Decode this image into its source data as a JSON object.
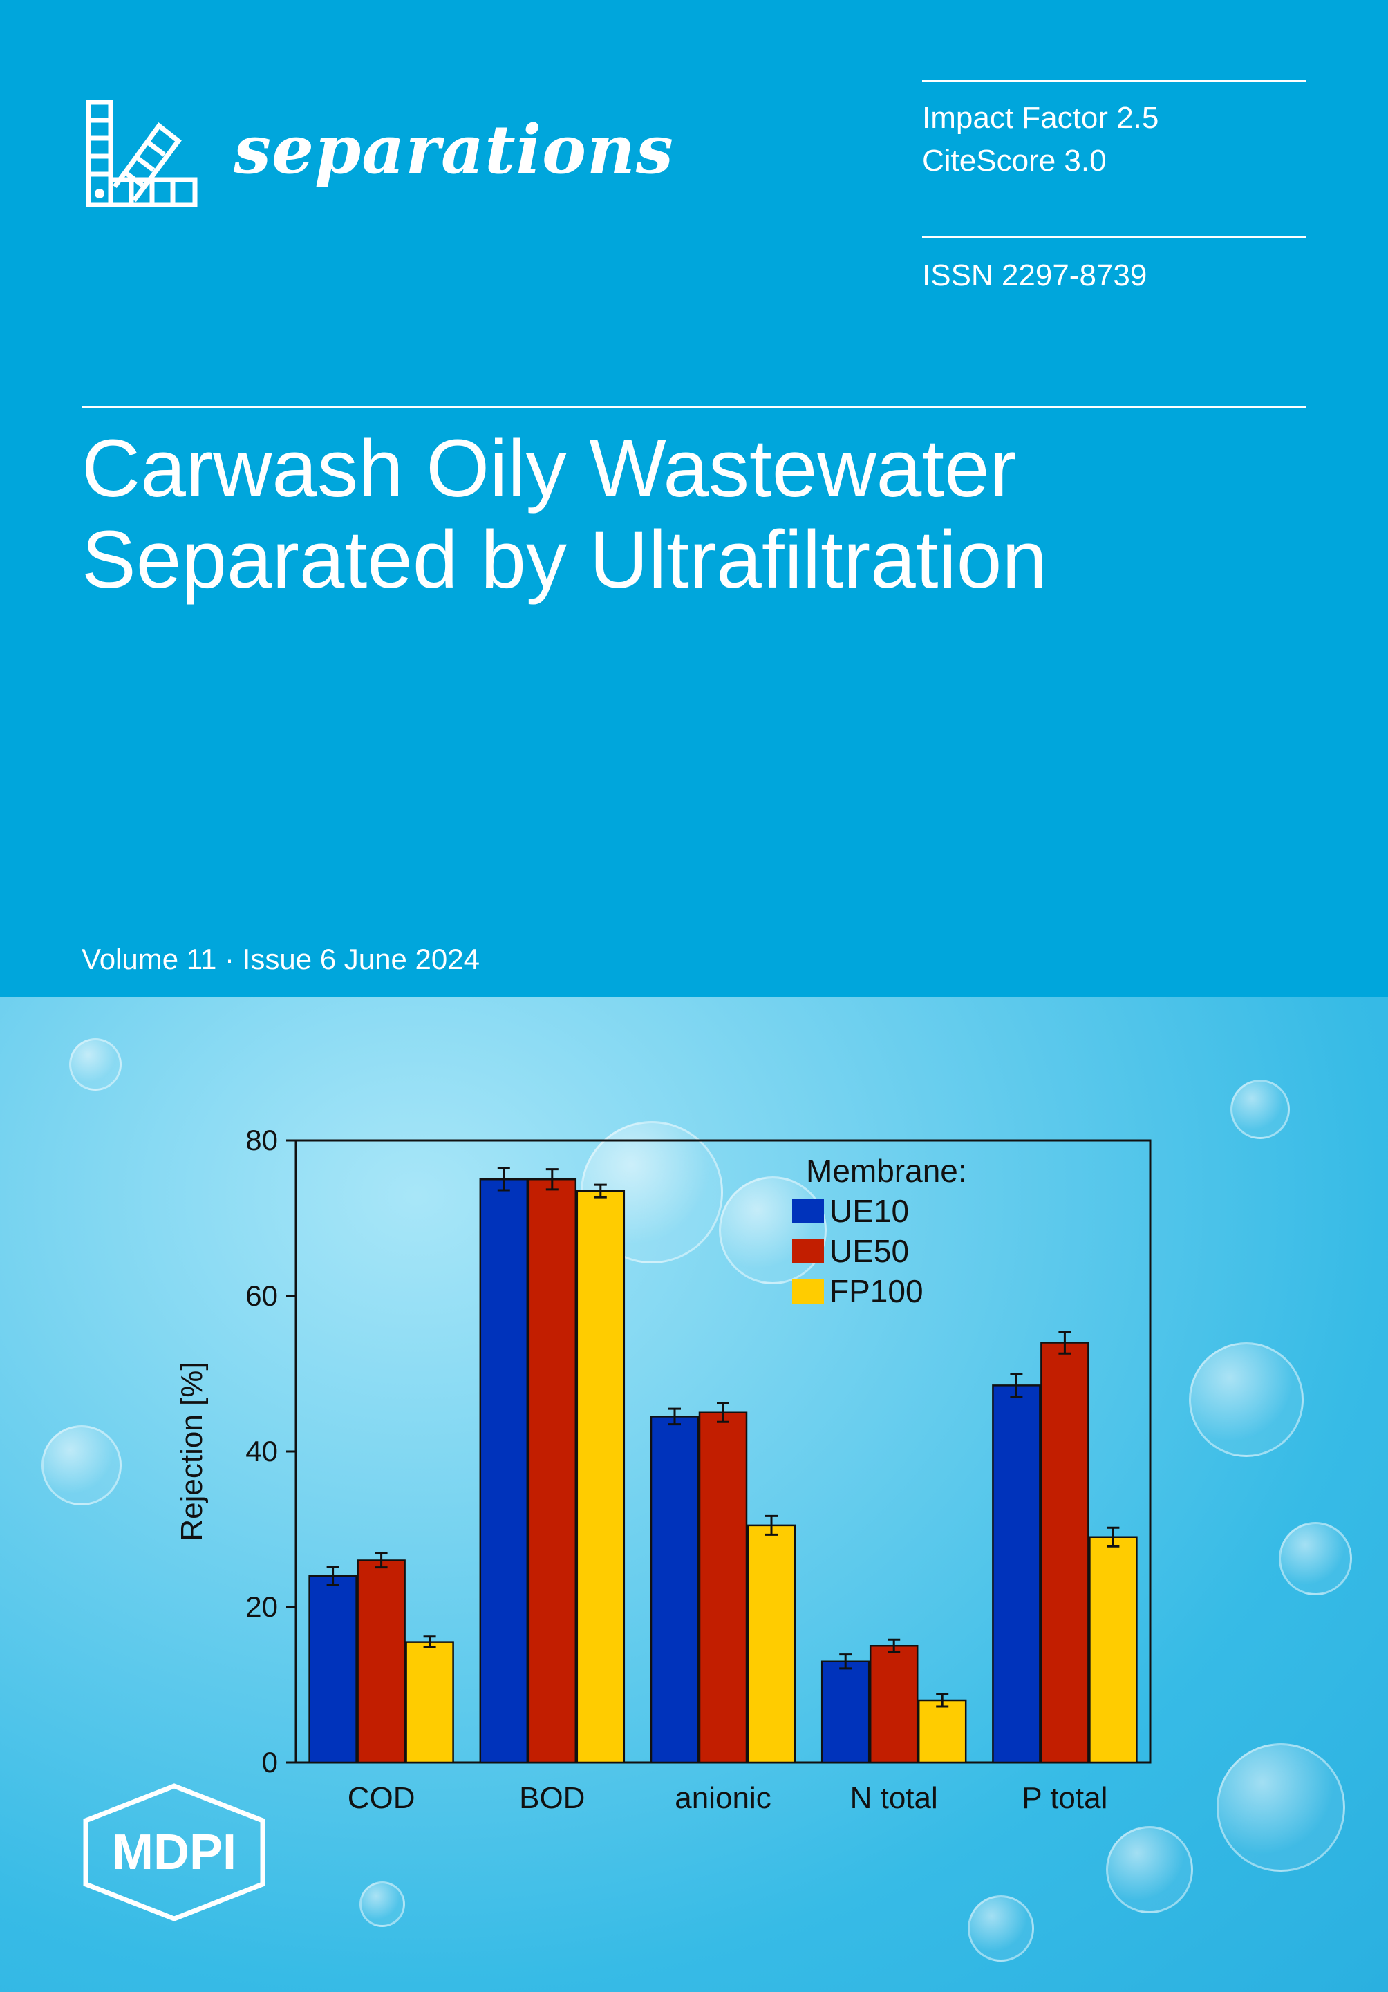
{
  "journal": {
    "name": "separations"
  },
  "metrics": {
    "impact_factor": "Impact Factor 2.5",
    "citescore": "CiteScore 3.0",
    "issn": "ISSN 2297-8739"
  },
  "article": {
    "title_line1": "Carwash Oily Wastewater",
    "title_line2": "Separated by Ultrafiltration"
  },
  "issue": {
    "text": "Volume 11 · Issue 6 June 2024"
  },
  "publisher": {
    "logo_text": "MDPI"
  },
  "colors": {
    "banner": "#00a6dc",
    "ue10": "#0033bb",
    "ue50": "#c21e00",
    "fp100": "#ffcc00"
  },
  "chart_data": {
    "type": "bar",
    "title": "",
    "xlabel": "",
    "ylabel": "Rejection [%]",
    "ylim": [
      0,
      80
    ],
    "yticks": [
      "0",
      "20",
      "40",
      "60",
      "80"
    ],
    "categories": [
      "COD",
      "BOD",
      "anionic",
      "N total",
      "P total"
    ],
    "legend_title": "Membrane:",
    "legend_position": "top-right",
    "grid": false,
    "series": [
      {
        "name": "UE10",
        "values": [
          24,
          75,
          44.5,
          13,
          48.5
        ],
        "errors": [
          1.2,
          1.4,
          1.0,
          0.9,
          1.5
        ]
      },
      {
        "name": "UE50",
        "values": [
          26,
          75,
          45,
          15,
          54
        ],
        "errors": [
          0.9,
          1.3,
          1.2,
          0.8,
          1.4
        ]
      },
      {
        "name": "FP100",
        "values": [
          15.5,
          73.5,
          30.5,
          8,
          29
        ],
        "errors": [
          0.7,
          0.8,
          1.2,
          0.8,
          1.2
        ]
      }
    ]
  }
}
